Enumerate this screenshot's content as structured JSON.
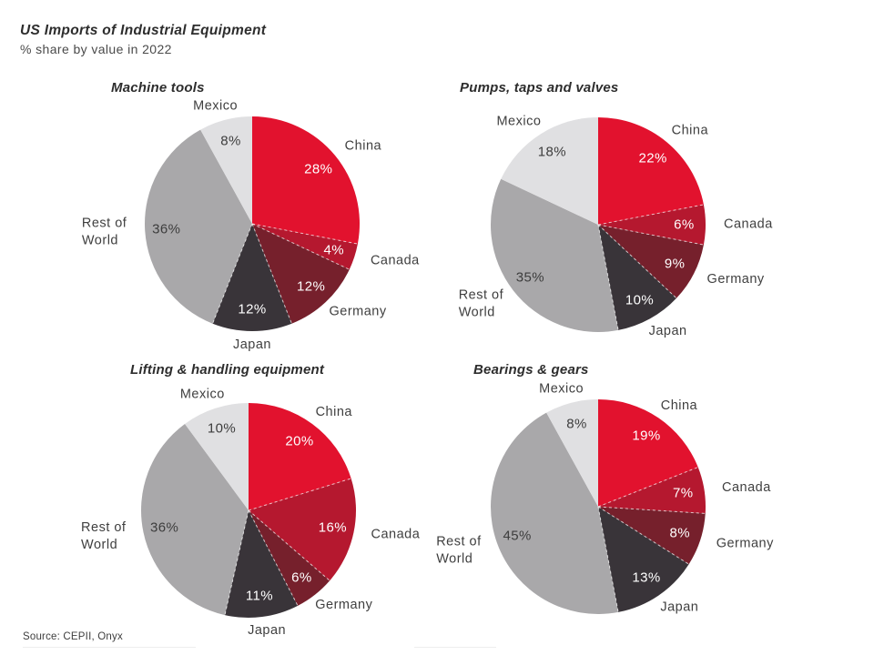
{
  "header": {
    "title": "US Imports of Industrial Equipment",
    "subtitle": "% share by value in 2022"
  },
  "footer": {
    "source": "Source: CEPII, Onyx"
  },
  "palette": {
    "China": {
      "fill": "#e2122e",
      "pct_text": "#ffffff"
    },
    "Canada": {
      "fill": "#b5182f",
      "pct_text": "#ffffff"
    },
    "Germany": {
      "fill": "#76202c",
      "pct_text": "#ffffff"
    },
    "Japan": {
      "fill": "#393439",
      "pct_text": "#ffffff"
    },
    "Rest of World": {
      "fill": "#a9a8aa",
      "pct_text": "#3d3d3d"
    },
    "Mexico": {
      "fill": "#e0e0e2",
      "pct_text": "#3d3d3d"
    }
  },
  "chart_data": [
    {
      "type": "pie",
      "title": "Machine tools",
      "categories": [
        "China",
        "Canada",
        "Germany",
        "Japan",
        "Rest of World",
        "Mexico"
      ],
      "values": [
        28,
        4,
        12,
        12,
        36,
        8
      ],
      "value_suffix": "%",
      "start_angle_deg": 0,
      "direction": "clockwise",
      "labels_position": "percent inside, category outside"
    },
    {
      "type": "pie",
      "title": "Pumps, taps and valves",
      "categories": [
        "China",
        "Canada",
        "Germany",
        "Japan",
        "Rest of World",
        "Mexico"
      ],
      "values": [
        22,
        6,
        9,
        10,
        35,
        18
      ],
      "value_suffix": "%",
      "start_angle_deg": 0,
      "direction": "clockwise",
      "labels_position": "percent inside, category outside"
    },
    {
      "type": "pie",
      "title": "Lifting & handling equipment",
      "categories": [
        "China",
        "Canada",
        "Germany",
        "Japan",
        "Rest of World",
        "Mexico"
      ],
      "values": [
        20,
        16,
        6,
        11,
        36,
        10
      ],
      "value_suffix": "%",
      "start_angle_deg": 0,
      "direction": "clockwise",
      "labels_position": "percent inside, category outside"
    },
    {
      "type": "pie",
      "title": "Bearings & gears",
      "categories": [
        "China",
        "Canada",
        "Germany",
        "Japan",
        "Rest of World",
        "Mexico"
      ],
      "values": [
        19,
        7,
        8,
        13,
        45,
        8
      ],
      "value_suffix": "%",
      "start_angle_deg": 0,
      "direction": "clockwise",
      "labels_position": "percent inside, category outside"
    }
  ]
}
